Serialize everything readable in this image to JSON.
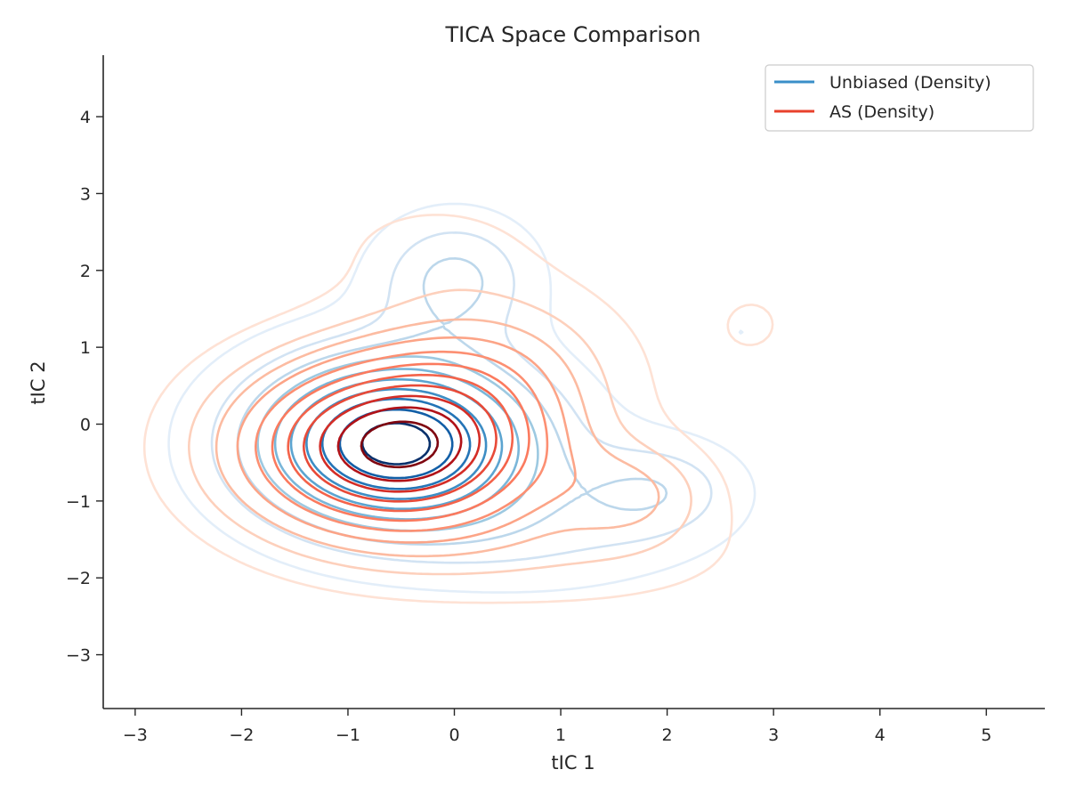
{
  "chart_data": {
    "type": "contour",
    "title": "TICA Space Comparison",
    "xlabel": "tIC 1",
    "ylabel": "tIC 2",
    "xlim": [
      -3.3,
      5.55
    ],
    "ylim": [
      -3.7,
      4.8
    ],
    "xticks": [
      -3,
      -2,
      -1,
      0,
      1,
      2,
      3,
      4,
      5
    ],
    "yticks": [
      -3,
      -2,
      -1,
      0,
      1,
      2,
      3,
      4
    ],
    "xtick_labels": [
      "−3",
      "−2",
      "−1",
      "0",
      "1",
      "2",
      "3",
      "4",
      "5"
    ],
    "ytick_labels": [
      "−3",
      "−2",
      "−1",
      "0",
      "1",
      "2",
      "3",
      "4"
    ],
    "grid": false,
    "legend_position": "top-right",
    "series": [
      {
        "name": "Unbiased (Density)",
        "color": "#3a8fc8",
        "kind": "kde-contour",
        "levels": 10,
        "colors": [
          "#e3eef9",
          "#d2e3f3",
          "#bcd7eb",
          "#9dc9e1",
          "#7ab6d9",
          "#5ca4d0",
          "#3d8dc4",
          "#2474b6",
          "#125ea6",
          "#08306b"
        ],
        "components": [
          {
            "cx": -0.55,
            "cy": -0.25,
            "sx": 0.9,
            "sy": 0.75,
            "w": 1.0
          },
          {
            "cx": 0.0,
            "cy": 1.9,
            "sx": 0.5,
            "sy": 0.55,
            "w": 0.28
          },
          {
            "cx": 1.9,
            "cy": -0.85,
            "sx": 0.55,
            "sy": 0.45,
            "w": 0.22
          },
          {
            "cx": 2.7,
            "cy": 1.2,
            "sx": 0.35,
            "sy": 0.4,
            "w": 0.06
          },
          {
            "cx": 0.9,
            "cy": -1.5,
            "sx": 0.9,
            "sy": 0.5,
            "w": 0.12
          }
        ]
      },
      {
        "name": "AS (Density)",
        "color": "#e8412c",
        "kind": "kde-contour",
        "levels": 11,
        "colors": [
          "#fee2d5",
          "#fdd0bc",
          "#fcbba1",
          "#fca487",
          "#fc8f72",
          "#fb7a5e",
          "#f4634a",
          "#e84a38",
          "#d42d26",
          "#b11218",
          "#7f0610"
        ],
        "components": [
          {
            "cx": -0.55,
            "cy": -0.3,
            "sx": 1.0,
            "sy": 0.8,
            "w": 1.0
          },
          {
            "cx": 0.4,
            "cy": 0.9,
            "sx": 0.8,
            "sy": 0.7,
            "w": 0.18
          },
          {
            "cx": 1.7,
            "cy": -0.9,
            "sx": 0.5,
            "sy": 0.45,
            "w": 0.2
          },
          {
            "cx": 2.8,
            "cy": 1.3,
            "sx": 0.35,
            "sy": 0.45,
            "w": 0.07
          },
          {
            "cx": 1.2,
            "cy": -1.7,
            "sx": 1.1,
            "sy": 0.5,
            "w": 0.1
          },
          {
            "cx": -0.2,
            "cy": 2.3,
            "sx": 0.7,
            "sy": 0.5,
            "w": 0.08
          }
        ]
      }
    ]
  }
}
